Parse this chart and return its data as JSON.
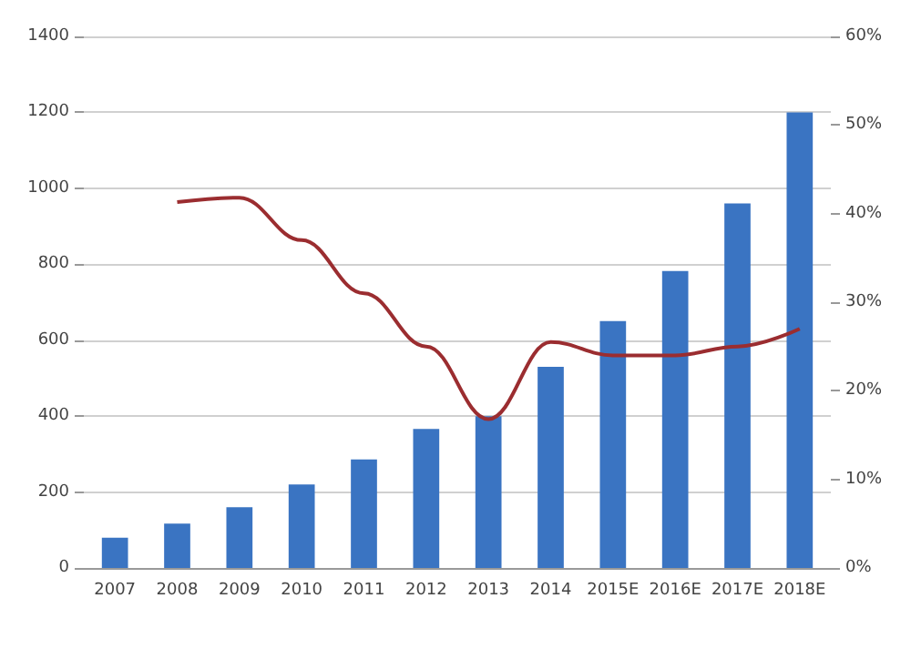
{
  "chart_data": {
    "type": "bar",
    "categories": [
      "2007",
      "2008",
      "2009",
      "2010",
      "2011",
      "2012",
      "2013",
      "2014",
      "2015E",
      "2016E",
      "2017E",
      "2018E"
    ],
    "series": [
      {
        "color": "#3a74c2",
        "values": [
          80,
          117,
          160,
          220,
          286,
          366,
          400,
          530,
          650,
          782,
          960,
          1200
        ]
      },
      {
        "type": "line",
        "axis": "y2",
        "color": "#9b2d30",
        "values": [
          null,
          41.3,
          41.8,
          37,
          31,
          25,
          16.8,
          25.5,
          24,
          24,
          25,
          27
        ]
      }
    ],
    "ylim": [
      0,
      1400
    ],
    "yticks": [
      0,
      200,
      400,
      600,
      800,
      1000,
      1200,
      1400
    ],
    "y2lim": [
      0,
      60
    ],
    "y2ticks": [
      {
        "value": 0,
        "label": "0%"
      },
      {
        "value": 10,
        "label": "10%"
      },
      {
        "value": 20,
        "label": "20%"
      },
      {
        "value": 30,
        "label": "30%"
      },
      {
        "value": 40,
        "label": "40%"
      },
      {
        "value": 50,
        "label": "50%"
      },
      {
        "value": 60,
        "label": "60%"
      }
    ],
    "grid": "y",
    "marker": "none"
  }
}
